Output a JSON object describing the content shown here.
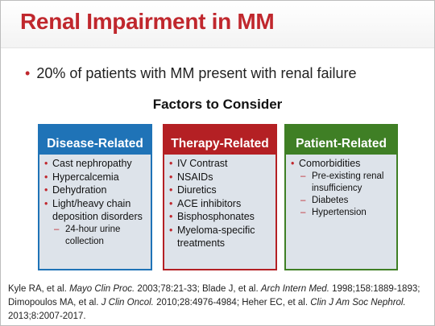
{
  "slide": {
    "title": "Renal Impairment in MM",
    "lead_bullet": "20% of patients with MM present with renal failure",
    "subheading": "Factors to Consider",
    "columns": [
      {
        "heading": "Disease-Related",
        "items": [
          {
            "text": "Cast nephropathy"
          },
          {
            "text": "Hypercalcemia"
          },
          {
            "text": "Dehydration"
          },
          {
            "text": "Light/heavy chain deposition disorders"
          },
          {
            "text": "24-hour urine collection",
            "sub": true
          }
        ]
      },
      {
        "heading": "Therapy-Related",
        "items": [
          {
            "text": "IV Contrast"
          },
          {
            "text": "NSAIDs"
          },
          {
            "text": "Diuretics"
          },
          {
            "text": "ACE inhibitors"
          },
          {
            "text": "Bisphosphonates"
          },
          {
            "text": "Myeloma-specific treatments"
          }
        ]
      },
      {
        "heading": "Patient-Related",
        "items": [
          {
            "text": "Comorbidities"
          },
          {
            "text": "Pre-existing renal insufficiency",
            "sub": true
          },
          {
            "text": "Diabetes",
            "sub": true
          },
          {
            "text": "Hypertension",
            "sub": true
          }
        ]
      }
    ],
    "references": {
      "r1_a": "Kyle RA, et al. ",
      "r1_j": "Mayo Clin Proc.",
      "r1_b": " 2003;78:21-33; Blade J, et al. ",
      "r2_j": "Arch Intern Med.",
      "r2_b": " 1998;158:1889-1893; Dimopoulos MA, et al. ",
      "r3_j": "J Clin Oncol.",
      "r3_b": " 2010;28:4976-4984; Heher EC, et al. ",
      "r4_j": "Clin J Am Soc Nephrol.",
      "r4_b": " 2013;8:2007-2017."
    }
  },
  "colors": {
    "title": "#c0272d",
    "disease": "#1f73b7",
    "therapy": "#b42024",
    "patient": "#3f7f25",
    "box_fill": "#dde3ea"
  }
}
